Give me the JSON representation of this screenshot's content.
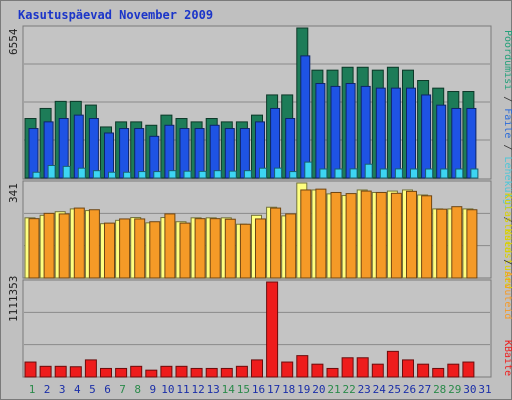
{
  "chart_data": {
    "type": "bar",
    "title": "Kasutuspäevad November 2009",
    "categories": [
      "1",
      "2",
      "3",
      "4",
      "5",
      "6",
      "7",
      "8",
      "9",
      "10",
      "11",
      "12",
      "13",
      "14",
      "15",
      "16",
      "17",
      "18",
      "19",
      "20",
      "21",
      "22",
      "23",
      "24",
      "25",
      "26",
      "27",
      "28",
      "29",
      "30",
      "31"
    ],
    "weekend_days": [
      "1",
      "7",
      "8",
      "14",
      "15",
      "21",
      "22",
      "28",
      "29"
    ],
    "panels": [
      {
        "id": "top",
        "max_label": "6554",
        "ymax": 6554,
        "series": [
          {
            "name": "Külastused",
            "color": "#1d7c58",
            "values": [
              2599,
              3039,
              3348,
              3348,
              3186,
              2231,
              2452,
              2452,
              2304,
              2747,
              2599,
              2452,
              2599,
              2452,
              2452,
              2747,
              3630,
              3630,
              6554,
              4712,
              4712,
              4839,
              4839,
              4712,
              4839,
              4712,
              4260,
              3926,
              3779,
              3779,
              null
            ]
          },
          {
            "name": "Lehekülgi",
            "color": "#1e53e4",
            "values": [
              2161,
              2453,
              2599,
              2747,
              2599,
              1966,
              2161,
              2161,
              1821,
              2304,
              2161,
              2161,
              2304,
              2161,
              2161,
              2452,
              3038,
              2599,
              5336,
              4128,
              4002,
              4128,
              4002,
              3926,
              3926,
              3926,
              3628,
              3183,
              3038,
              3038,
              null
            ]
          },
          {
            "name": "Faile",
            "color": "#3dd5f3",
            "values": [
              251,
              546,
              507,
              428,
              319,
              252,
              251,
              281,
              280,
              320,
              297,
              290,
              320,
              300,
              320,
              428,
              432,
              281,
              694,
              393,
              393,
              398,
              602,
              393,
              398,
              393,
              393,
              393,
              393,
              393,
              null
            ]
          }
        ]
      },
      {
        "id": "mid",
        "max_label": "341",
        "ymax": 341,
        "series": [
          {
            "name": "Pöördumisi",
            "color": "#ffff80",
            "values": [
              216,
              225,
              238,
              248,
              242,
              195,
              207,
              217,
              198,
              217,
              202,
              216,
              216,
              216,
              193,
              225,
              254,
              223,
              341,
              316,
              302,
              296,
              316,
              307,
              312,
              316,
              298,
              248,
              248,
              248,
              null
            ]
          },
          {
            "name": "Arvuteid",
            "color": "#f59a27",
            "values": [
              213,
              232,
              230,
              251,
              245,
              197,
              212,
              212,
              202,
              230,
              197,
              213,
              213,
              211,
              193,
              212,
              251,
              230,
              316,
              319,
              307,
              303,
              312,
              307,
              304,
              311,
              295,
              247,
              256,
              245,
              null
            ]
          }
        ]
      },
      {
        "id": "bot",
        "max_label": "1111353",
        "ymax": 1111353,
        "series": [
          {
            "name": "KBaite",
            "color": "#ee1c1c",
            "values": [
              175000,
              125000,
              125000,
              120000,
              200000,
              100000,
              100000,
              125000,
              80000,
              125000,
              125000,
              100000,
              100000,
              100000,
              125000,
              200000,
              1111353,
              175000,
              250000,
              150000,
              100000,
              225000,
              225000,
              150000,
              300000,
              200000,
              150000,
              100000,
              150000,
              175000,
              null
            ]
          }
        ]
      }
    ],
    "legend": {
      "top": [
        {
          "text": "Pöördumisi",
          "color": "#26a07a"
        },
        {
          "text": " / ",
          "color": "#333333"
        },
        {
          "text": "Faile",
          "color": "#2b6bd8"
        },
        {
          "text": " / ",
          "color": "#333333"
        },
        {
          "text": "Lehekülgi",
          "color": "#4ec6d8"
        },
        {
          "text": " / ",
          "color": "#333333"
        },
        {
          "text": "Külastused",
          "color": "#d9d000"
        }
      ],
      "mid": [
        {
          "text": "Külastused",
          "color": "#d9d000"
        },
        {
          "text": " / ",
          "color": "#333333"
        },
        {
          "text": "Arvuteid",
          "color": "#f59a27"
        }
      ],
      "bot": [
        {
          "text": "KBaite",
          "color": "#ee1c1c"
        }
      ]
    },
    "grid": true,
    "colors": {
      "title": "#1b35c9",
      "background": "#c0c0c0",
      "plot_background": "#c4c4c4",
      "gridline": "#8a8a8a",
      "weekday_label": "#1b2fa8",
      "weekend_label": "#2a8a4a"
    }
  }
}
